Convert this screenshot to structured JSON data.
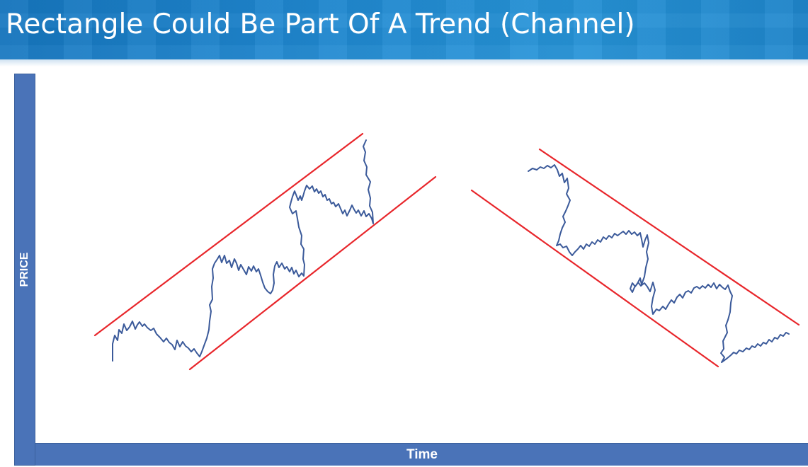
{
  "slide": {
    "title": "Rectangle Could Be Part Of  A Trend (Channel)"
  },
  "axes": {
    "y_label": "PRICE",
    "x_label": "Time"
  },
  "colors": {
    "title_bar": "#1f87d0",
    "axis_bar": "#4a73b8",
    "channel_line": "#e8262b",
    "price_line": "#3b5a9a"
  },
  "diagrams": [
    {
      "name": "rising-channel",
      "direction": "up"
    },
    {
      "name": "falling-channel",
      "direction": "down"
    }
  ]
}
